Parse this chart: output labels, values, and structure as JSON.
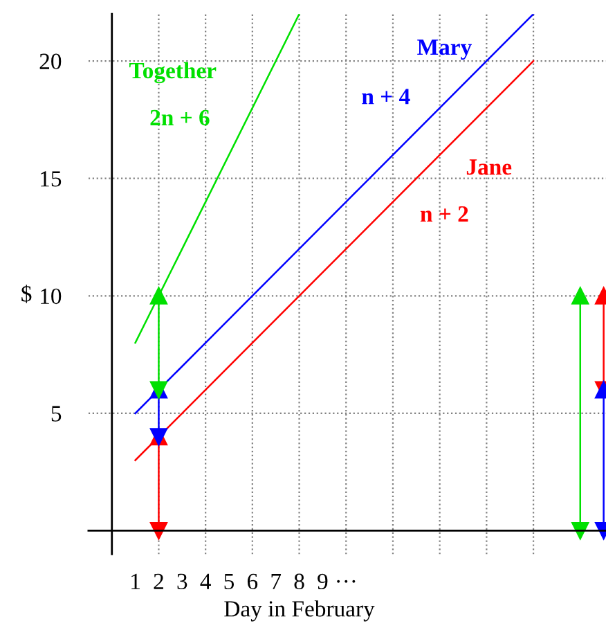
{
  "chart_data": {
    "type": "line",
    "xlabel": "Day in February",
    "ylabel": "$",
    "xlim": [
      -1,
      21.1
    ],
    "ylim": [
      -1,
      22
    ],
    "xticks": [
      1,
      2,
      3,
      4,
      5,
      6,
      7,
      8,
      9,
      {
        "value": 10,
        "label": "···"
      }
    ],
    "yticks": [
      5,
      10,
      15,
      20
    ],
    "grid": "y",
    "marker": "none",
    "line_style": "solid",
    "legend": false,
    "ref_lines": [
      {
        "axis": "x",
        "value": 2,
        "label": null,
        "color": "#808080",
        "line_style": "dotted"
      },
      {
        "axis": "x",
        "value": 4,
        "label": null,
        "color": "#808080",
        "line_style": "dotted"
      },
      {
        "axis": "x",
        "value": 6,
        "label": null,
        "color": "#808080",
        "line_style": "dotted"
      },
      {
        "axis": "x",
        "value": 8,
        "label": null,
        "color": "#808080",
        "line_style": "dotted"
      },
      {
        "axis": "x",
        "value": 10,
        "label": null,
        "color": "#808080",
        "line_style": "dotted"
      },
      {
        "axis": "x",
        "value": 12,
        "label": null,
        "color": "#808080",
        "line_style": "dotted"
      },
      {
        "axis": "x",
        "value": 14,
        "label": null,
        "color": "#808080",
        "line_style": "dotted"
      },
      {
        "axis": "x",
        "value": 16,
        "label": null,
        "color": "#808080",
        "line_style": "dotted"
      },
      {
        "axis": "x",
        "value": 18,
        "label": null,
        "color": "#808080",
        "line_style": "dotted"
      }
    ],
    "series": [
      {
        "name": "Together",
        "color": "#00e000",
        "x": [
          1,
          8
        ],
        "values": [
          8,
          22
        ]
      },
      {
        "name": "Mary",
        "color": "#0000ff",
        "x": [
          1,
          18
        ],
        "values": [
          5,
          22
        ]
      },
      {
        "name": "Jane",
        "color": "#ff0000",
        "x": [
          1,
          18
        ],
        "values": [
          3,
          20
        ]
      },
      {
        "color": "#ff0000",
        "x": [
          2,
          2
        ],
        "values": [
          0,
          4
        ],
        "marker": "triangle"
      },
      {
        "color": "#0000ff",
        "x": [
          2,
          2
        ],
        "values": [
          4,
          6
        ],
        "marker": "triangle"
      },
      {
        "color": "#00e000",
        "x": [
          2,
          2
        ],
        "values": [
          6,
          10
        ],
        "marker": "triangle"
      },
      {
        "color": "#00e000",
        "x": [
          20,
          20
        ],
        "values": [
          0,
          10
        ],
        "marker": "triangle"
      },
      {
        "color": "#ff0000",
        "x": [
          21,
          21
        ],
        "values": [
          6,
          10
        ],
        "marker": "triangle"
      },
      {
        "color": "#0000ff",
        "x": [
          21,
          21
        ],
        "values": [
          0,
          6
        ],
        "marker": "triangle"
      }
    ],
    "annotations": [
      "2n + 6",
      "n + 4",
      "n + 2"
    ]
  }
}
